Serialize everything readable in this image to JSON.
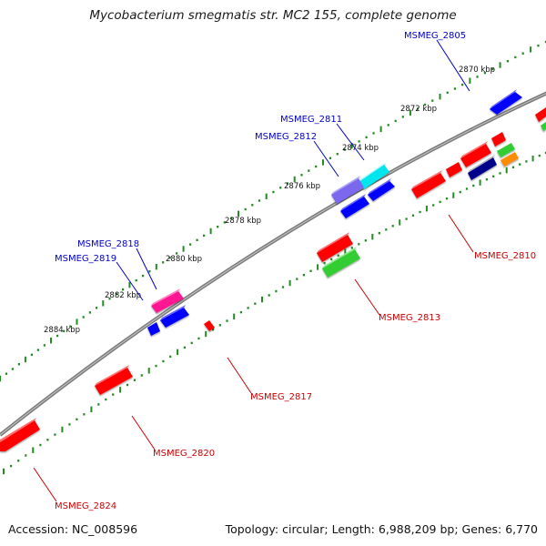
{
  "title": "Mycobacterium smegmatis str. MC2 155, complete genome",
  "footer": {
    "accession": "Accession: NC_008596",
    "topology": "Topology: circular; Length: 6,988,209 bp; Genes: 6,770"
  },
  "colors": {
    "backbone": "#808080",
    "forward_label": "#0000cc",
    "reverse_label": "#cc0000",
    "tick": "#228b22"
  },
  "tick_labels": [
    "2870 kbp",
    "2872 kbp",
    "2874 kbp",
    "2876 kbp",
    "2878 kbp",
    "2880 kbp",
    "2882 kbp",
    "2884 kbp"
  ],
  "gene_labels_forward": [
    "MSMEG_2805",
    "MSMEG_2811",
    "MSMEG_2812",
    "MSMEG_2818",
    "MSMEG_2819"
  ],
  "gene_labels_reverse": [
    "MSMEG_2810",
    "MSMEG_2813",
    "MSMEG_2817",
    "MSMEG_2820",
    "MSMEG_2824"
  ],
  "gene_colors": [
    "#0000ff",
    "#ff0000",
    "#00ffff",
    "#7b68ee",
    "#32cd32",
    "#ff1493",
    "#ff8c00",
    "#00008b",
    "#b0b0c8"
  ]
}
